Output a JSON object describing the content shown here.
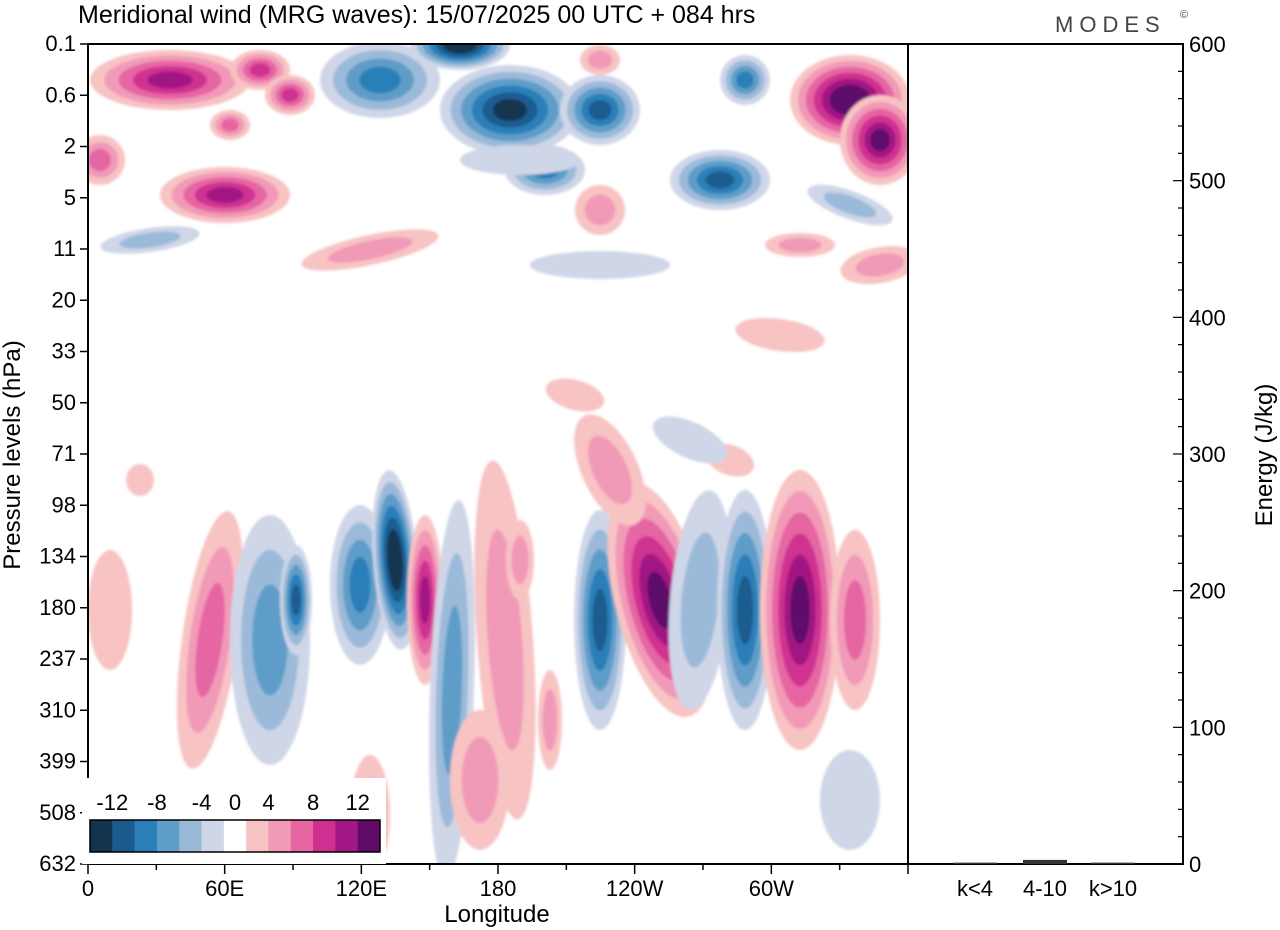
{
  "title": "Meridional wind (MRG waves):  15/07/2025  00 UTC  + 084 hrs",
  "brand": "MODES",
  "brand_mark": "©",
  "chart_data": [
    {
      "type": "heatmap",
      "title": "Meridional wind (MRG waves):  15/07/2025  00 UTC  + 084 hrs",
      "xlabel": "Longitude",
      "ylabel": "Pressure levels (hPa)",
      "x_ticks": [
        "0",
        "60E",
        "120E",
        "180",
        "120W",
        "60W"
      ],
      "x_tick_degrees": [
        0,
        60,
        120,
        180,
        240,
        300
      ],
      "xlim": [
        0,
        360
      ],
      "y_ticks": [
        "0.1",
        "0.6",
        "2",
        "5",
        "11",
        "20",
        "33",
        "50",
        "71",
        "98",
        "134",
        "180",
        "237",
        "310",
        "399",
        "508",
        "632"
      ],
      "y_scale": "sigma levels (top 0.1 hPa, bottom 632 hPa)",
      "colorbar": {
        "labels": [
          "-12",
          "-8",
          "-4",
          "0",
          "4",
          "8",
          "12"
        ],
        "levels": [
          -14,
          -12,
          -10,
          -8,
          -6,
          -4,
          -2,
          2,
          4,
          6,
          8,
          10,
          12,
          14
        ],
        "colors": [
          "#12344f",
          "#1b5c8f",
          "#2a7fb8",
          "#5f9dc9",
          "#9bbad9",
          "#cfd6e8",
          "#ffffff",
          "#f8c3c3",
          "#f19ab8",
          "#e665a3",
          "#cf3090",
          "#a21884",
          "#5e0b6a"
        ],
        "placement": "bottom-left"
      },
      "features": [
        {
          "lon": 135,
          "p_level": "134-237",
          "value": -14
        },
        {
          "lon": 147,
          "p_level": "134-237",
          "value": 10
        },
        {
          "lon": 236,
          "p_level": "134-237",
          "value": -10
        },
        {
          "lon": 252,
          "p_level": "134-237",
          "value": 12
        },
        {
          "lon": 282,
          "p_level": "134-237",
          "value": -10
        },
        {
          "lon": 314,
          "p_level": "180-310",
          "value": 12
        },
        {
          "lon": 160,
          "p_level": "0.1",
          "value": -14
        },
        {
          "lon": 355,
          "p_level": "0.6-2",
          "value": 14
        },
        {
          "lon": 75,
          "p_level": "5",
          "value": 12
        }
      ]
    },
    {
      "type": "bar",
      "categories": [
        "k<4",
        "4-10",
        "k>10"
      ],
      "values": [
        1,
        3,
        1
      ],
      "ylabel": "Energy (J/kg)",
      "ylim": [
        0,
        600
      ],
      "y_ticks": [
        "0",
        "100",
        "200",
        "300",
        "400",
        "500",
        "600"
      ],
      "y_axis_side": "right"
    }
  ]
}
